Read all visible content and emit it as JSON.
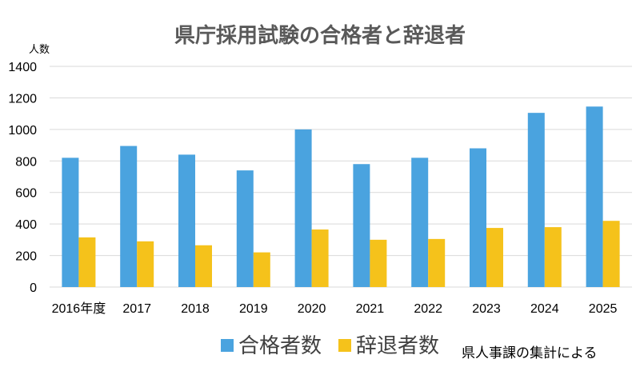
{
  "chart_data": {
    "type": "bar",
    "title": "県庁採用試験の合格者と辞退者",
    "ylabel": "人数",
    "xlabel": "",
    "categories": [
      "2016年度",
      "2017",
      "2018",
      "2019",
      "2020",
      "2021",
      "2022",
      "2023",
      "2024",
      "2025"
    ],
    "series": [
      {
        "name": "合格者数",
        "values": [
          820,
          895,
          840,
          740,
          1000,
          780,
          820,
          880,
          1105,
          1145
        ],
        "color": "#4aa3df"
      },
      {
        "name": "辞退者数",
        "values": [
          315,
          290,
          265,
          220,
          365,
          300,
          305,
          375,
          380,
          420
        ],
        "color": "#f5c21b"
      }
    ],
    "ylim": [
      0,
      1400
    ],
    "yticks": [
      0,
      200,
      400,
      600,
      800,
      1000,
      1200,
      1400
    ],
    "grid": true,
    "legend_position": "bottom",
    "source_note": "県人事課の集計による"
  }
}
